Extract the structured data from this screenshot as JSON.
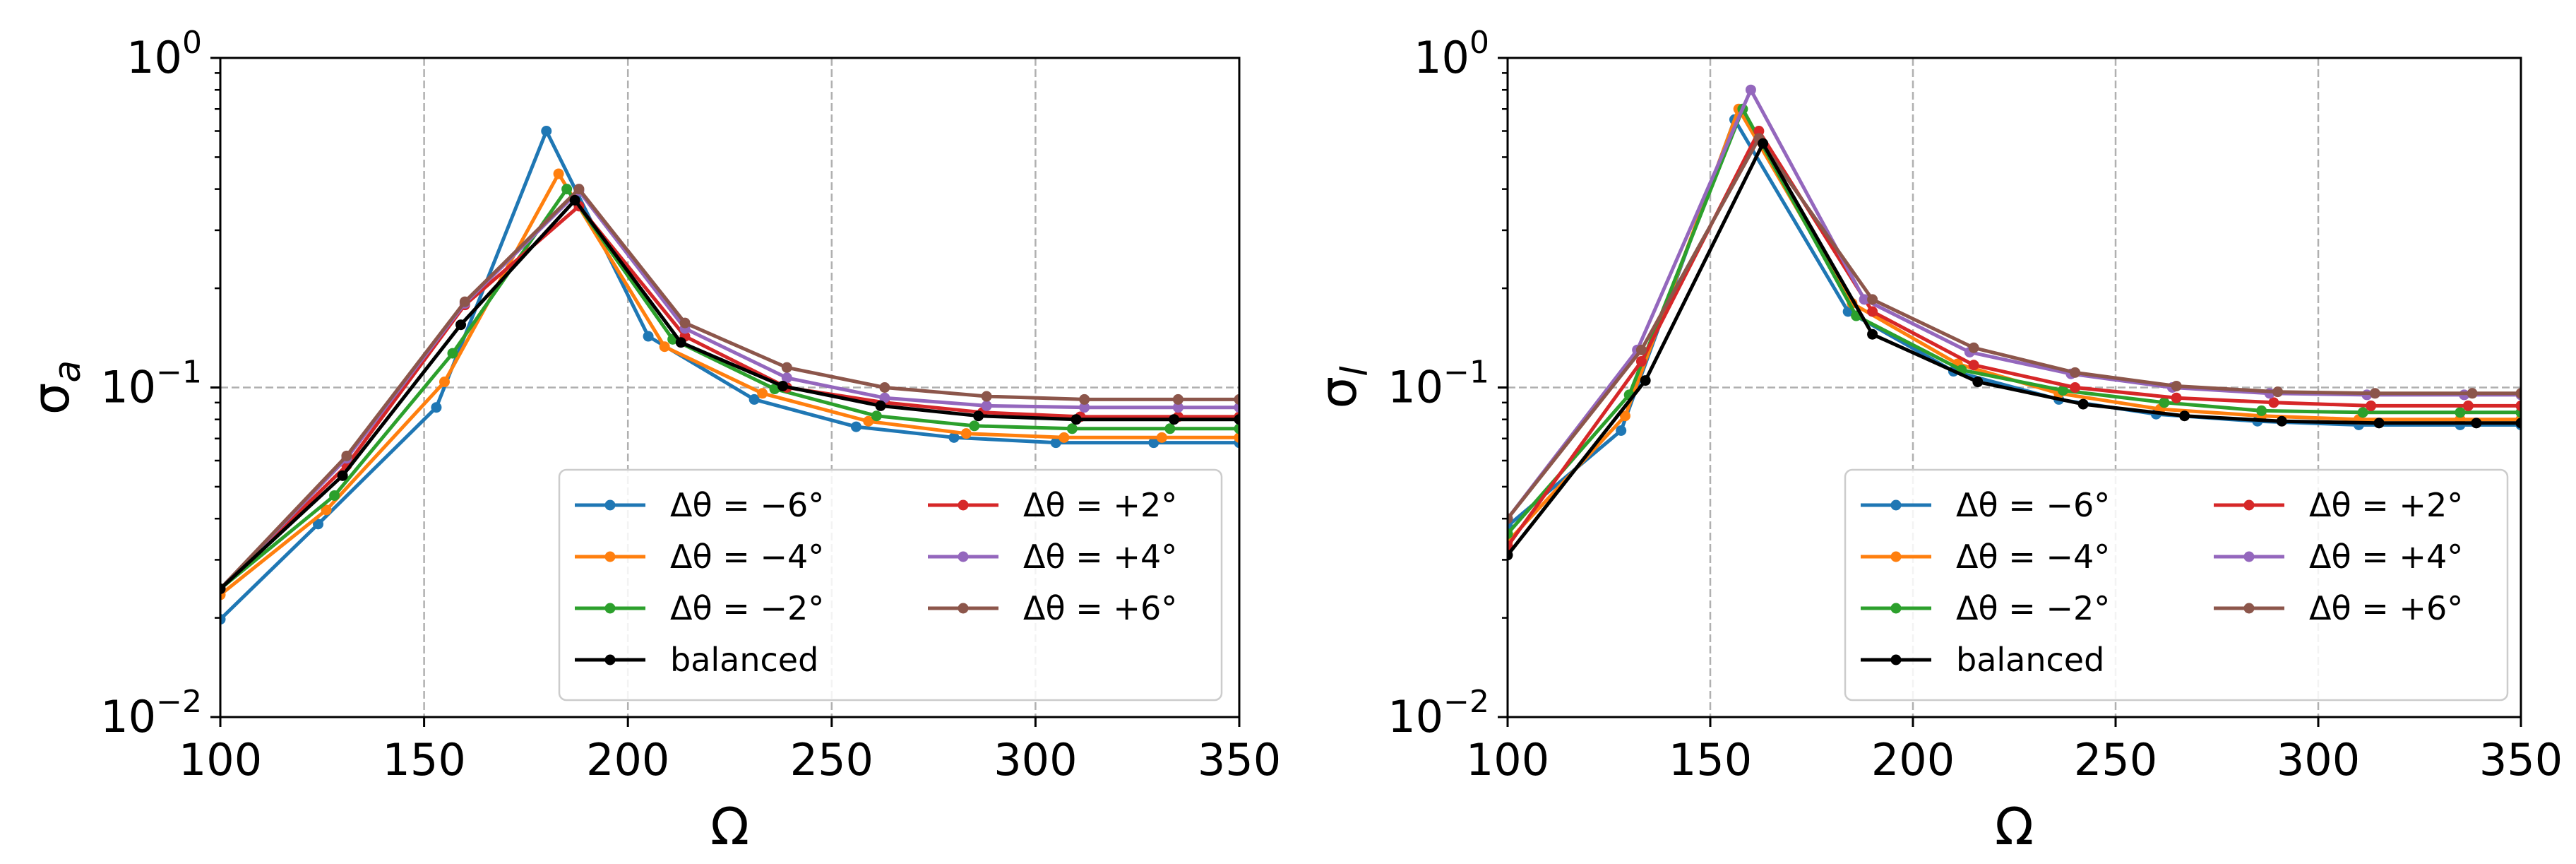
{
  "chart_data": [
    {
      "type": "line",
      "panel": "left",
      "ylabel": "σ_a",
      "ylabel_main": "σ",
      "ylabel_sub": "a",
      "xlabel": "Ω",
      "xlim": [
        100,
        350
      ],
      "ylim": [
        0.01,
        1
      ],
      "yscale": "log",
      "grid": true,
      "legend_location": "lower-right",
      "x_ticks": [
        100,
        150,
        200,
        250,
        300,
        350
      ],
      "x_tick_labels": [
        "100",
        "150",
        "200",
        "250",
        "300",
        "350"
      ],
      "y_ticks": [
        0.01,
        0.1,
        1
      ],
      "y_tick_labels": [
        {
          "base": "10",
          "exp": "−2"
        },
        {
          "base": "10",
          "exp": "−1"
        },
        {
          "base": "10",
          "exp": "0"
        }
      ],
      "series": [
        {
          "name": "Δθ = −6°",
          "color": "#1f77b4",
          "x": [
            100,
            124,
            153,
            180,
            205,
            231,
            256,
            280,
            305,
            329,
            350
          ],
          "y": [
            0.0198,
            0.0385,
            0.087,
            0.6,
            0.143,
            0.092,
            0.076,
            0.0705,
            0.068,
            0.068,
            0.068
          ]
        },
        {
          "name": "Δθ = −4°",
          "color": "#ff7f0e",
          "x": [
            100,
            126,
            155,
            183,
            209,
            233,
            259,
            283,
            307,
            331,
            350
          ],
          "y": [
            0.0235,
            0.0425,
            0.104,
            0.445,
            0.133,
            0.096,
            0.079,
            0.0725,
            0.0705,
            0.0705,
            0.0705
          ]
        },
        {
          "name": "Δθ = −2°",
          "color": "#2ca02c",
          "x": [
            100,
            128,
            157,
            185,
            211,
            236,
            261,
            285,
            309,
            333,
            350
          ],
          "y": [
            0.0245,
            0.047,
            0.127,
            0.4,
            0.14,
            0.099,
            0.082,
            0.0765,
            0.075,
            0.075,
            0.075
          ]
        },
        {
          "name": "Δθ = +2°",
          "color": "#d62728",
          "x": [
            100,
            131,
            160,
            188,
            214,
            239,
            263,
            287,
            311,
            335,
            350
          ],
          "y": [
            0.0245,
            0.058,
            0.178,
            0.355,
            0.143,
            0.1,
            0.09,
            0.084,
            0.0815,
            0.0815,
            0.0815
          ]
        },
        {
          "name": "Δθ = +4°",
          "color": "#9467bd",
          "x": [
            100,
            131,
            160,
            188,
            214,
            239,
            263,
            288,
            312,
            335,
            350
          ],
          "y": [
            0.0245,
            0.061,
            0.18,
            0.395,
            0.151,
            0.107,
            0.093,
            0.088,
            0.087,
            0.087,
            0.087
          ]
        },
        {
          "name": "Δθ = +6°",
          "color": "#8c564b",
          "x": [
            100,
            131,
            160,
            188,
            214,
            239,
            263,
            288,
            312,
            335,
            350
          ],
          "y": [
            0.0245,
            0.062,
            0.182,
            0.4,
            0.157,
            0.115,
            0.1,
            0.094,
            0.092,
            0.092,
            0.092
          ]
        },
        {
          "name": "balanced",
          "color": "#000000",
          "x": [
            100,
            130,
            159,
            187,
            213,
            238,
            262,
            286,
            310,
            334,
            350
          ],
          "y": [
            0.0245,
            0.054,
            0.155,
            0.37,
            0.137,
            0.101,
            0.088,
            0.082,
            0.08,
            0.08,
            0.08
          ]
        }
      ]
    },
    {
      "type": "line",
      "panel": "right",
      "ylabel": "σ_l",
      "ylabel_main": "σ",
      "ylabel_sub": "l",
      "xlabel": "Ω",
      "xlim": [
        100,
        350
      ],
      "ylim": [
        0.01,
        1
      ],
      "yscale": "log",
      "grid": true,
      "legend_location": "lower-right",
      "x_ticks": [
        100,
        150,
        200,
        250,
        300,
        350
      ],
      "x_tick_labels": [
        "100",
        "150",
        "200",
        "250",
        "300",
        "350"
      ],
      "y_ticks": [
        0.01,
        0.1,
        1
      ],
      "y_tick_labels": [
        {
          "base": "10",
          "exp": "−2"
        },
        {
          "base": "10",
          "exp": "−1"
        },
        {
          "base": "10",
          "exp": "0"
        }
      ],
      "series": [
        {
          "name": "Δθ = −6°",
          "color": "#1f77b4",
          "x": [
            100,
            128,
            156,
            184,
            210,
            236,
            260,
            285,
            310,
            335,
            350
          ],
          "y": [
            0.038,
            0.074,
            0.65,
            0.17,
            0.112,
            0.092,
            0.083,
            0.079,
            0.077,
            0.077,
            0.077
          ]
        },
        {
          "name": "Δθ = −4°",
          "color": "#ff7f0e",
          "x": [
            100,
            129,
            157,
            185,
            211,
            236,
            261,
            286,
            310,
            335,
            350
          ],
          "y": [
            0.034,
            0.082,
            0.7,
            0.18,
            0.118,
            0.096,
            0.086,
            0.082,
            0.08,
            0.08,
            0.08
          ]
        },
        {
          "name": "Δθ = −2°",
          "color": "#2ca02c",
          "x": [
            100,
            130,
            158,
            186,
            212,
            237,
            262,
            286,
            311,
            335,
            350
          ],
          "y": [
            0.036,
            0.095,
            0.7,
            0.165,
            0.113,
            0.098,
            0.09,
            0.085,
            0.084,
            0.084,
            0.084
          ]
        },
        {
          "name": "Δθ = +2°",
          "color": "#d62728",
          "x": [
            100,
            133,
            162,
            190,
            215,
            240,
            265,
            289,
            313,
            337,
            350
          ],
          "y": [
            0.033,
            0.12,
            0.6,
            0.17,
            0.117,
            0.1,
            0.093,
            0.09,
            0.088,
            0.088,
            0.088
          ]
        },
        {
          "name": "Δθ = +4°",
          "color": "#9467bd",
          "x": [
            100,
            132,
            160,
            188,
            214,
            239,
            264,
            288,
            312,
            336,
            350
          ],
          "y": [
            0.04,
            0.13,
            0.8,
            0.185,
            0.128,
            0.11,
            0.1,
            0.096,
            0.095,
            0.095,
            0.095
          ]
        },
        {
          "name": "Δθ = +6°",
          "color": "#8c564b",
          "x": [
            100,
            133,
            162,
            190,
            215,
            240,
            265,
            290,
            314,
            338,
            350
          ],
          "y": [
            0.04,
            0.13,
            0.57,
            0.185,
            0.132,
            0.111,
            0.101,
            0.097,
            0.096,
            0.096,
            0.096
          ]
        },
        {
          "name": "balanced",
          "color": "#000000",
          "x": [
            100,
            134,
            163,
            190,
            216,
            242,
            267,
            291,
            315,
            339,
            350
          ],
          "y": [
            0.031,
            0.105,
            0.55,
            0.145,
            0.104,
            0.089,
            0.082,
            0.079,
            0.078,
            0.078,
            0.078
          ]
        }
      ]
    }
  ],
  "legend": {
    "columns": [
      [
        "Δθ = −6°",
        "Δθ = −4°",
        "Δθ = −2°",
        "balanced"
      ],
      [
        "Δθ = +2°",
        "Δθ = +4°",
        "Δθ = +6°"
      ]
    ]
  }
}
